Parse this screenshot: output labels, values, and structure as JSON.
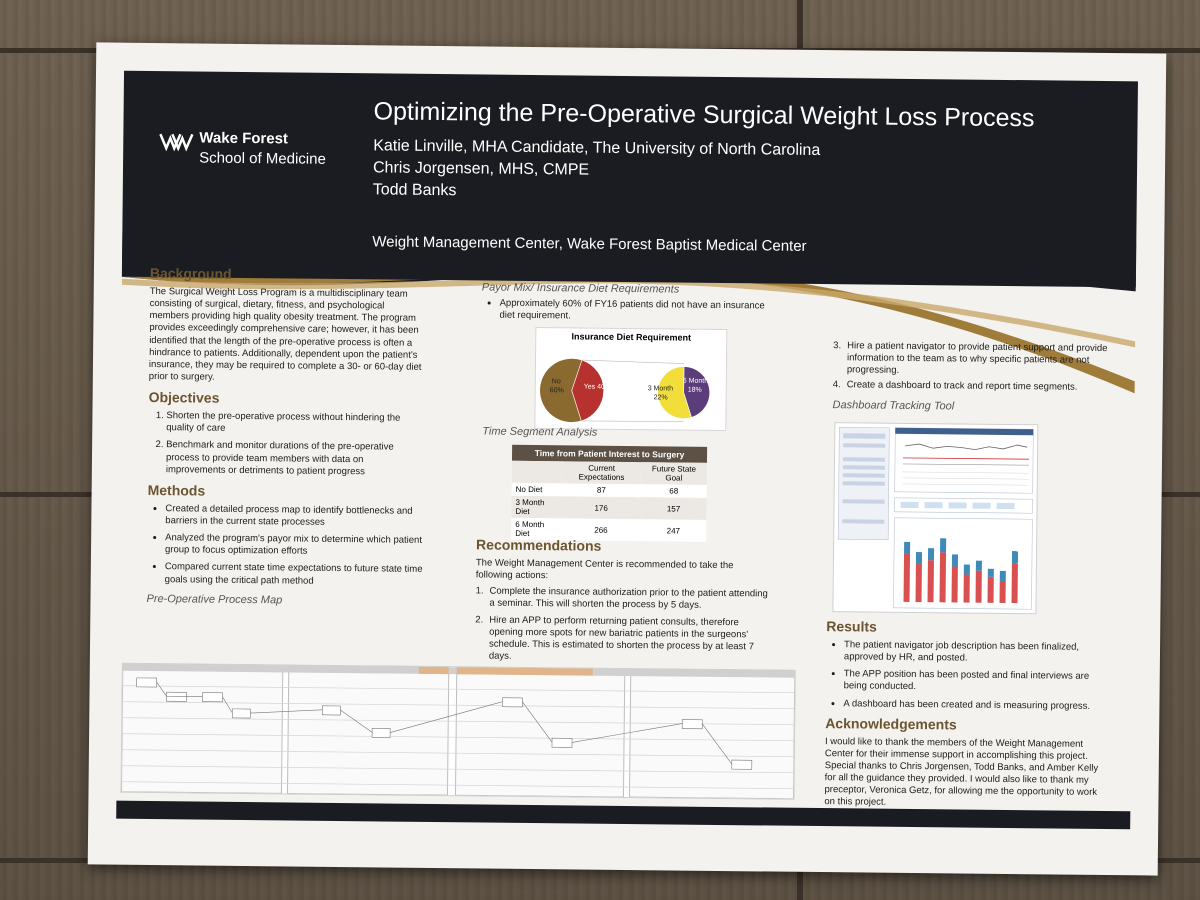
{
  "header": {
    "logo_name": "Wake Forest",
    "logo_sub": "School of Medicine",
    "title": "Optimizing the Pre-Operative Surgical Weight Loss Process",
    "authors": [
      "Katie Linville, MHA Candidate, The University of North Carolina",
      "Chris Jorgensen, MHS, CMPE",
      "Todd Banks"
    ],
    "affiliation": "Weight Management Center, Wake Forest Baptist Medical Center"
  },
  "background": {
    "heading": "Background",
    "text": "The Surgical Weight Loss Program is a multidisciplinary team consisting of surgical, dietary, fitness, and psychological members providing high quality obesity treatment. The program provides exceedingly comprehensive care; however, it has been identified that the length of the pre-operative process is often a hindrance to patients. Additionally, dependent upon the patient's insurance, they may be required to complete a 30- or 60-day diet prior to surgery."
  },
  "objectives": {
    "heading": "Objectives",
    "items": [
      "Shorten the pre-operative process without hindering the quality of care",
      "Benchmark and monitor durations of the pre-operative process to provide team members with data on improvements or detriments to patient progress"
    ]
  },
  "methods": {
    "heading": "Methods",
    "items": [
      "Created a detailed process map to identify bottlenecks and barriers in the current state processes",
      "Analyzed the program's payor mix to determine which patient group to focus optimization efforts",
      "Compared current state time expectations to future state time goals using the critical path method"
    ]
  },
  "process_map": {
    "heading": "Pre-Operative Process Map"
  },
  "payor": {
    "heading": "Payor Mix/ Insurance Diet Requirements",
    "bullet": "Approximately 60% of FY16 patients did not have an insurance diet requirement."
  },
  "pie_labels": {
    "no": "No",
    "no_pct": "60%",
    "yes": "Yes 40%",
    "m3": "3 Month",
    "m3_pct": "22%",
    "m6": "6 Month",
    "m6_pct": "18%"
  },
  "time_segment": {
    "heading": "Time Segment Analysis"
  },
  "time_table": {
    "title": "Time from Patient Interest to Surgery",
    "col1": "Current Expectations",
    "col2": "Future State Goal",
    "rows": [
      {
        "label": "No Diet",
        "current": "87",
        "future": "68"
      },
      {
        "label": "3 Month Diet",
        "current": "176",
        "future": "157"
      },
      {
        "label": "6 Month Diet",
        "current": "266",
        "future": "247"
      }
    ]
  },
  "recommendations": {
    "heading": "Recommendations",
    "intro": "The Weight Management Center is recommended to take the following actions:",
    "items": [
      "Complete the insurance authorization prior to the patient attending a seminar. This will shorten the process by 5 days.",
      "Hire an APP to perform returning patient consults, therefore opening more spots for new bariatric patients in the surgeons' schedule. This is estimated to shorten the process by at least 7 days.",
      "Hire a patient navigator to provide patient support and provide information to the team as to why specific patients are not progressing.",
      "Create a dashboard to track and report time segments."
    ],
    "n1": "1.",
    "n2": "2.",
    "n3": "3.",
    "n4": "4."
  },
  "dashboard": {
    "heading": "Dashboard Tracking Tool"
  },
  "results": {
    "heading": "Results",
    "items": [
      "The patient navigator job description has been finalized, approved by HR, and posted.",
      "The APP position has been posted and final interviews are being conducted.",
      "A dashboard has been created and is measuring progress."
    ]
  },
  "acknowledgements": {
    "heading": "Acknowledgements",
    "text": "I would like to thank the members of the Weight Management Center for their immense support in accomplishing this project. Special thanks to Chris Jorgensen, Todd Banks, and Amber Kelly for all the guidance they provided. I would also like to thank my preceptor, Veronica Getz, for allowing me the opportunity to work on this project."
  },
  "pie": {
    "main": [
      {
        "label": "No",
        "pct": 60
      },
      {
        "label": "Yes",
        "pct": 40
      }
    ],
    "sub": [
      {
        "label": "3 Month",
        "pct": 22
      },
      {
        "label": "6 Month",
        "pct": 18
      }
    ],
    "title": "Insurance Diet Requirement",
    "colors": {
      "no": "#8a6a2e",
      "yes": "#b7312f",
      "m3": "#f2de3b",
      "m6": "#5b3d7a"
    }
  },
  "colors": {
    "banner": "#1a1c22",
    "gold": "#a07c3a",
    "heading": "#6b5530"
  }
}
